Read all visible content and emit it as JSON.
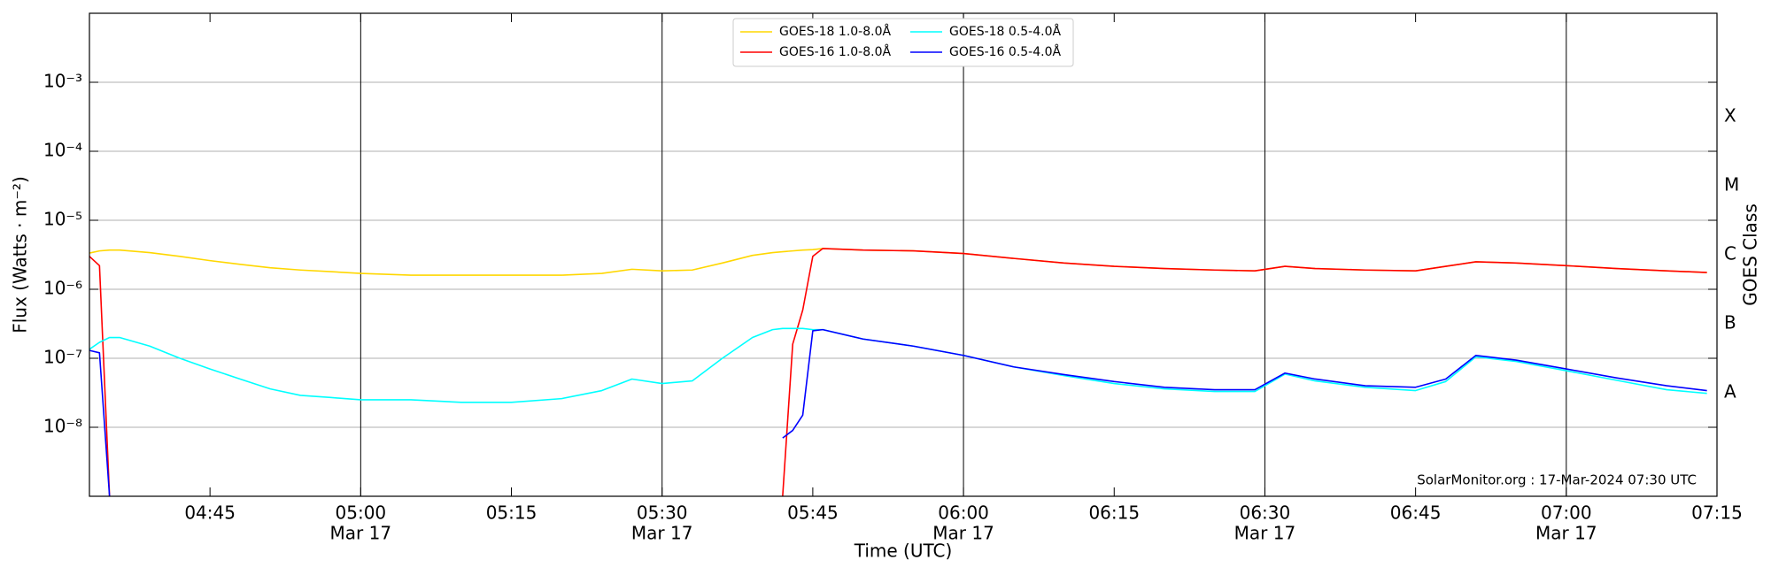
{
  "chart_data": {
    "type": "line",
    "xlabel": "Time (UTC)",
    "ylabel": "Flux (Watts · m⁻²)",
    "y2label": "GOES Class",
    "annotation": "SolarMonitor.org : 17-Mar-2024 07:30 UTC",
    "log_y": true,
    "grid": true,
    "legend_loc": "upper center",
    "xlim": [
      "04:33",
      "07:15"
    ],
    "xticks": [
      "04:45",
      "05:00",
      "05:15",
      "05:30",
      "05:45",
      "06:00",
      "06:15",
      "06:30",
      "06:45",
      "07:00",
      "07:15"
    ],
    "xtick_dates": [
      null,
      "Mar 17",
      null,
      "Mar 17",
      null,
      "Mar 17",
      null,
      "Mar 17",
      null,
      "Mar 17",
      null
    ],
    "vlines": [
      "05:00",
      "05:30",
      "06:00",
      "06:30",
      "07:00"
    ],
    "ylim": [
      1e-09,
      0.01
    ],
    "yticks": [
      {
        "value": 1e-08,
        "label": "10⁻⁸"
      },
      {
        "value": 1e-07,
        "label": "10⁻⁷"
      },
      {
        "value": 1e-06,
        "label": "10⁻⁶"
      },
      {
        "value": 1e-05,
        "label": "10⁻⁵"
      },
      {
        "value": 0.0001,
        "label": "10⁻⁴"
      },
      {
        "value": 0.001,
        "label": "10⁻³"
      }
    ],
    "y2lim": [
      1e-09,
      0.01
    ],
    "y2ticks": [
      {
        "value": 3.162e-08,
        "label": "A"
      },
      {
        "value": 3.162e-07,
        "label": "B"
      },
      {
        "value": 3.162e-06,
        "label": "C"
      },
      {
        "value": 3.162e-05,
        "label": "M"
      },
      {
        "value": 0.0003162,
        "label": "X"
      }
    ],
    "x": [
      "04:33",
      "04:34",
      "04:35",
      "04:36",
      "04:39",
      "04:42",
      "04:45",
      "04:48",
      "04:51",
      "04:54",
      "04:57",
      "05:00",
      "05:05",
      "05:10",
      "05:15",
      "05:20",
      "05:24",
      "05:27",
      "05:30",
      "05:33",
      "05:36",
      "05:39",
      "05:41",
      "05:42",
      "05:43",
      "05:44",
      "05:45",
      "05:46",
      "05:50",
      "05:55",
      "06:00",
      "06:05",
      "06:10",
      "06:15",
      "06:20",
      "06:25",
      "06:29",
      "06:32",
      "06:35",
      "06:40",
      "06:45",
      "06:48",
      "06:51",
      "06:55",
      "07:00",
      "07:05",
      "07:10",
      "07:14"
    ],
    "series": [
      {
        "name": "GOES-18 1.0-8.0Å",
        "color": "#ffd700",
        "values": [
          3.35e-06,
          3.6e-06,
          3.7e-06,
          3.7e-06,
          3.4e-06,
          3e-06,
          2.6e-06,
          2.3e-06,
          2.05e-06,
          1.9e-06,
          1.8e-06,
          1.7e-06,
          1.6e-06,
          1.6e-06,
          1.6e-06,
          1.6e-06,
          1.7e-06,
          1.95e-06,
          1.85e-06,
          1.9e-06,
          2.4e-06,
          3.1e-06,
          3.4e-06,
          3.5e-06,
          3.6e-06,
          3.7e-06,
          3.75e-06,
          3.9e-06,
          3.7e-06,
          3.6e-06,
          3.3e-06,
          2.8e-06,
          2.4e-06,
          2.15e-06,
          2e-06,
          1.9e-06,
          1.85e-06,
          2.15e-06,
          2e-06,
          1.9e-06,
          1.85e-06,
          2.15e-06,
          2.5e-06,
          2.4e-06,
          2.2e-06,
          2e-06,
          1.85e-06,
          1.75e-06
        ]
      },
      {
        "name": "GOES-16 1.0-8.0Å",
        "color": "#ff0000",
        "values": [
          3e-06,
          2.2e-06,
          1e-09,
          null,
          null,
          null,
          null,
          null,
          null,
          null,
          null,
          null,
          null,
          null,
          null,
          null,
          null,
          null,
          null,
          null,
          null,
          null,
          null,
          1e-09,
          1.6e-07,
          5e-07,
          3e-06,
          3.9e-06,
          3.7e-06,
          3.6e-06,
          3.3e-06,
          2.8e-06,
          2.4e-06,
          2.15e-06,
          2e-06,
          1.9e-06,
          1.85e-06,
          2.15e-06,
          2e-06,
          1.9e-06,
          1.85e-06,
          2.15e-06,
          2.5e-06,
          2.4e-06,
          2.2e-06,
          2e-06,
          1.85e-06,
          1.75e-06
        ]
      },
      {
        "name": "GOES-18 0.5-4.0Å",
        "color": "#00ffff",
        "values": [
          1.35e-07,
          1.7e-07,
          2e-07,
          2e-07,
          1.5e-07,
          1e-07,
          7e-08,
          5e-08,
          3.6e-08,
          2.9e-08,
          2.7e-08,
          2.5e-08,
          2.5e-08,
          2.3e-08,
          2.3e-08,
          2.6e-08,
          3.4e-08,
          5e-08,
          4.3e-08,
          4.7e-08,
          1e-07,
          2e-07,
          2.6e-07,
          2.7e-07,
          2.7e-07,
          2.7e-07,
          2.6e-07,
          2.6e-07,
          1.9e-07,
          1.5e-07,
          1.1e-07,
          7.5e-08,
          5.6e-08,
          4.3e-08,
          3.6e-08,
          3.3e-08,
          3.3e-08,
          5.9e-08,
          4.7e-08,
          3.8e-08,
          3.4e-08,
          4.6e-08,
          1.05e-07,
          9e-08,
          6.6e-08,
          4.8e-08,
          3.5e-08,
          3.1e-08
        ]
      },
      {
        "name": "GOES-16 0.5-4.0Å",
        "color": "#0000ff",
        "values": [
          1.3e-07,
          1.2e-07,
          1e-09,
          null,
          null,
          null,
          null,
          null,
          null,
          null,
          null,
          null,
          null,
          null,
          null,
          null,
          null,
          null,
          null,
          null,
          null,
          null,
          null,
          7e-09,
          9e-09,
          1.5e-08,
          2.5e-07,
          2.6e-07,
          1.9e-07,
          1.5e-07,
          1.1e-07,
          7.5e-08,
          5.8e-08,
          4.6e-08,
          3.8e-08,
          3.5e-08,
          3.5e-08,
          6.1e-08,
          5e-08,
          4e-08,
          3.8e-08,
          5e-08,
          1.1e-07,
          9.4e-08,
          7e-08,
          5.2e-08,
          4e-08,
          3.4e-08
        ]
      }
    ]
  }
}
